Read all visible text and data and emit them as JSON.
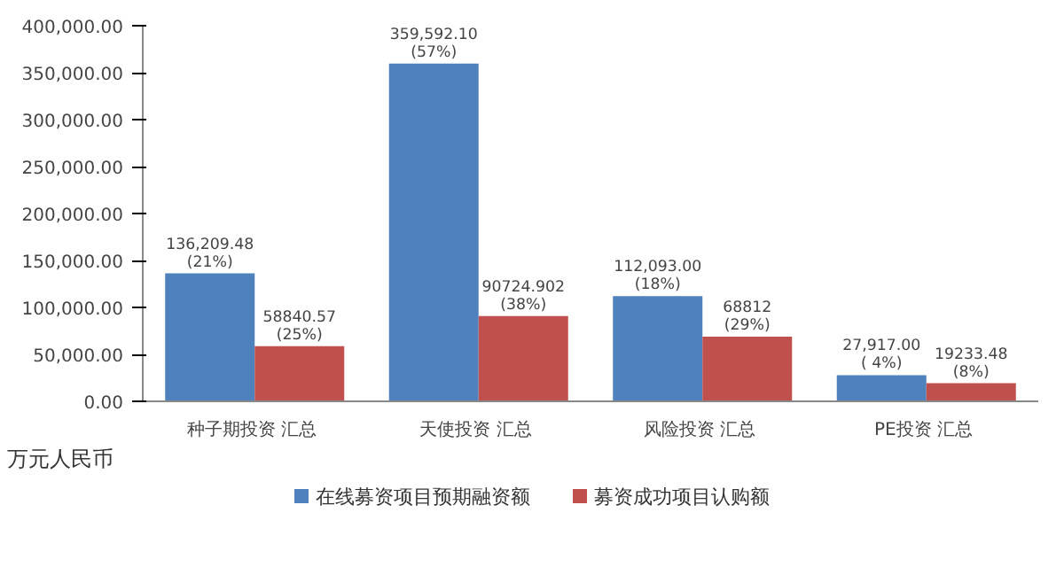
{
  "chart_data": {
    "type": "bar",
    "ylabel": "万元人民币",
    "categories": [
      "种子期投资  汇总",
      "天使投资  汇总",
      "风险投资  汇总",
      "PE投资  汇总"
    ],
    "series": [
      {
        "name": "在线募资项目预期融资额",
        "color": "#4f81bd",
        "values": [
          136209.48,
          359592.1,
          112093.0,
          27917.0
        ],
        "value_labels": [
          "136,209.48\n(21%)",
          "359,592.10\n(57%)",
          "112,093.00\n(18%)",
          "27,917.00\n( 4%)"
        ]
      },
      {
        "name": "募资成功项目认购额",
        "color": "#c0504d",
        "values": [
          58840.57,
          90724.902,
          68812,
          19233.48
        ],
        "value_labels": [
          "58840.57\n(25%)",
          "90724.902\n(38%)",
          "68812\n(29%)",
          "19233.48\n(8%)"
        ]
      }
    ],
    "ylim": [
      0,
      400000
    ],
    "yticks": [
      {
        "value": 0,
        "label": "0.00"
      },
      {
        "value": 50000,
        "label": "50,000.00"
      },
      {
        "value": 100000,
        "label": "100,000.00"
      },
      {
        "value": 150000,
        "label": "150,000.00"
      },
      {
        "value": 200000,
        "label": "200,000.00"
      },
      {
        "value": 250000,
        "label": "250,000.00"
      },
      {
        "value": 300000,
        "label": "300,000.00"
      },
      {
        "value": 350000,
        "label": "350,000.00"
      },
      {
        "value": 400000,
        "label": "400,000.00"
      }
    ],
    "grid": false,
    "legend": "bottom"
  }
}
